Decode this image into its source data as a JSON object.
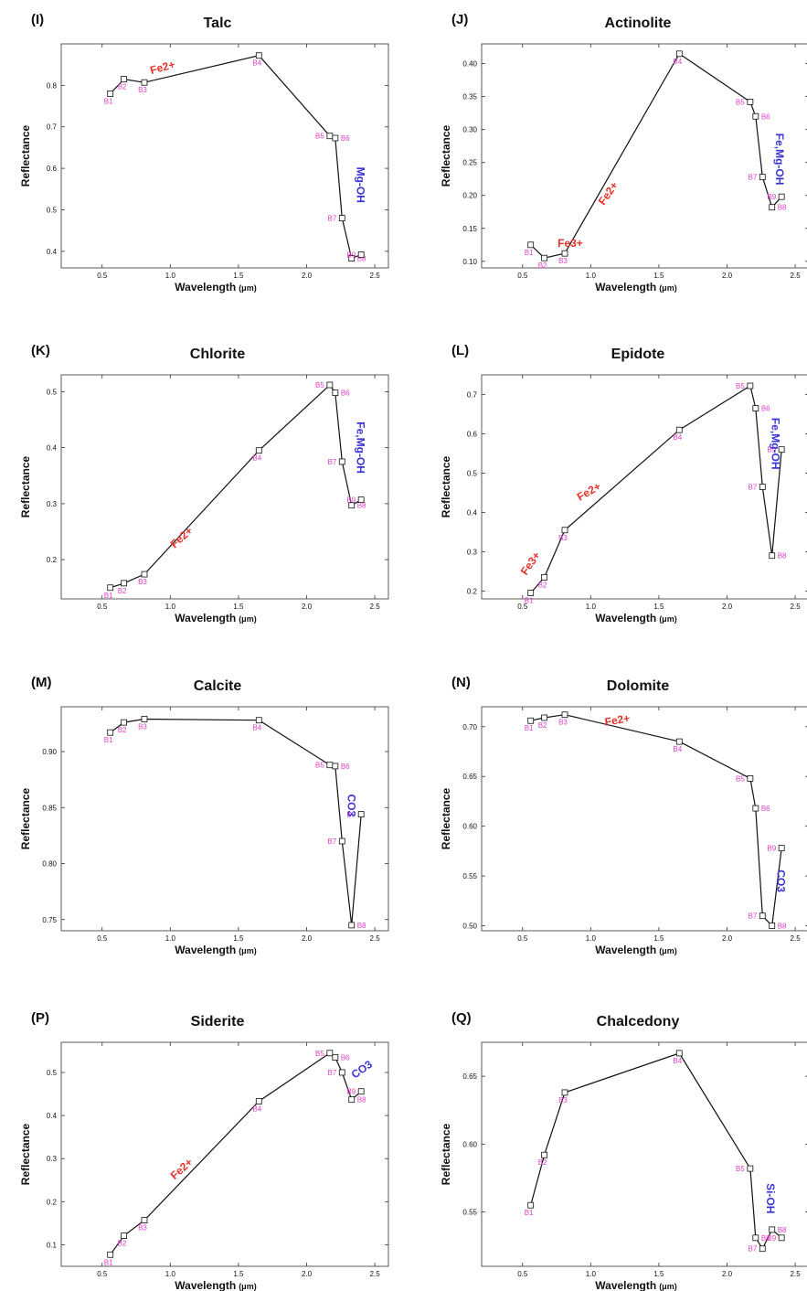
{
  "figure": {
    "xlabel": "Wavelength",
    "xunit": "(μm)",
    "ylabel": "Reflectance",
    "colors": {
      "line": "#111111",
      "band_label": "#e040c8",
      "fe_label": "#e8302a",
      "oh_label": "#3a34d8",
      "box": "#333333"
    }
  },
  "chart_data": [
    {
      "type": "line",
      "panel": "(I)",
      "title": "Talc",
      "xlabel": "Wavelength",
      "ylabel": "Reflectance",
      "xlim": [
        0.2,
        2.6
      ],
      "ylim": [
        0.36,
        0.9
      ],
      "xticks": [
        "0.5",
        "1.0",
        "1.5",
        "2.0",
        "2.5"
      ],
      "yticks": [
        "0.4",
        "0.5",
        "0.6",
        "0.7",
        "0.8"
      ],
      "grid": false,
      "points": [
        {
          "x": 0.56,
          "y": 0.78,
          "label": "B1"
        },
        {
          "x": 0.66,
          "y": 0.815,
          "label": "B2"
        },
        {
          "x": 0.81,
          "y": 0.807,
          "label": "B3"
        },
        {
          "x": 1.65,
          "y": 0.872,
          "label": "B4"
        },
        {
          "x": 2.17,
          "y": 0.678,
          "label": "B5"
        },
        {
          "x": 2.21,
          "y": 0.673,
          "label": "B6"
        },
        {
          "x": 2.26,
          "y": 0.48,
          "label": "B7"
        },
        {
          "x": 2.33,
          "y": 0.383,
          "label": "B8"
        },
        {
          "x": 2.4,
          "y": 0.392,
          "label": "B9"
        }
      ],
      "annotations": [
        {
          "text": "Fe2+",
          "x": 0.95,
          "y": 0.835,
          "rot": -15,
          "kind": "fe"
        },
        {
          "text": "Mg-OH",
          "x": 2.37,
          "y": 0.56,
          "rot": 90,
          "kind": "oh"
        }
      ]
    },
    {
      "type": "line",
      "panel": "(J)",
      "title": "Actinolite",
      "xlabel": "Wavelength",
      "ylabel": "Reflectance",
      "xlim": [
        0.2,
        2.6
      ],
      "ylim": [
        0.09,
        0.43
      ],
      "xticks": [
        "0.5",
        "1.0",
        "1.5",
        "2.0",
        "2.5"
      ],
      "yticks": [
        "0.10",
        "0.15",
        "0.20",
        "0.25",
        "0.30",
        "0.35",
        "0.40"
      ],
      "grid": false,
      "points": [
        {
          "x": 0.56,
          "y": 0.125,
          "label": "B1"
        },
        {
          "x": 0.66,
          "y": 0.105,
          "label": "B2"
        },
        {
          "x": 0.81,
          "y": 0.112,
          "label": "B3"
        },
        {
          "x": 1.65,
          "y": 0.415,
          "label": "B4"
        },
        {
          "x": 2.17,
          "y": 0.342,
          "label": "B5"
        },
        {
          "x": 2.21,
          "y": 0.32,
          "label": "B6"
        },
        {
          "x": 2.26,
          "y": 0.228,
          "label": "B7"
        },
        {
          "x": 2.33,
          "y": 0.182,
          "label": "B8"
        },
        {
          "x": 2.4,
          "y": 0.198,
          "label": "B9"
        }
      ],
      "annotations": [
        {
          "text": "Fe3+",
          "x": 0.85,
          "y": 0.122,
          "rot": 0,
          "kind": "fe"
        },
        {
          "text": "Fe2+",
          "x": 1.15,
          "y": 0.2,
          "rot": -55,
          "kind": "fe"
        },
        {
          "text": "Fe,Mg-OH",
          "x": 2.36,
          "y": 0.255,
          "rot": 90,
          "kind": "oh"
        }
      ]
    },
    {
      "type": "line",
      "panel": "(K)",
      "title": "Chlorite",
      "xlabel": "Wavelength",
      "ylabel": "Reflectance",
      "xlim": [
        0.2,
        2.6
      ],
      "ylim": [
        0.13,
        0.53
      ],
      "xticks": [
        "0.5",
        "1.0",
        "1.5",
        "2.0",
        "2.5"
      ],
      "yticks": [
        "0.2",
        "0.3",
        "0.4",
        "0.5"
      ],
      "grid": false,
      "points": [
        {
          "x": 0.56,
          "y": 0.15,
          "label": "B1"
        },
        {
          "x": 0.66,
          "y": 0.158,
          "label": "B2"
        },
        {
          "x": 0.81,
          "y": 0.174,
          "label": "B3"
        },
        {
          "x": 1.65,
          "y": 0.395,
          "label": "B4"
        },
        {
          "x": 2.17,
          "y": 0.512,
          "label": "B5"
        },
        {
          "x": 2.21,
          "y": 0.498,
          "label": "B6"
        },
        {
          "x": 2.26,
          "y": 0.375,
          "label": "B7"
        },
        {
          "x": 2.33,
          "y": 0.297,
          "label": "B8"
        },
        {
          "x": 2.4,
          "y": 0.307,
          "label": "B9"
        }
      ],
      "annotations": [
        {
          "text": "Fe2+",
          "x": 1.1,
          "y": 0.235,
          "rot": -42,
          "kind": "fe"
        },
        {
          "text": "Fe,Mg-OH",
          "x": 2.37,
          "y": 0.4,
          "rot": 90,
          "kind": "oh"
        }
      ]
    },
    {
      "type": "line",
      "panel": "(L)",
      "title": "Epidote",
      "xlabel": "Wavelength",
      "ylabel": "Reflectance",
      "xlim": [
        0.2,
        2.6
      ],
      "ylim": [
        0.18,
        0.75
      ],
      "xticks": [
        "0.5",
        "1.0",
        "1.5",
        "2.0",
        "2.5"
      ],
      "yticks": [
        "0.2",
        "0.3",
        "0.4",
        "0.5",
        "0.6",
        "0.7"
      ],
      "grid": false,
      "points": [
        {
          "x": 0.56,
          "y": 0.195,
          "label": "B1"
        },
        {
          "x": 0.66,
          "y": 0.235,
          "label": "B2"
        },
        {
          "x": 0.81,
          "y": 0.355,
          "label": "B3"
        },
        {
          "x": 1.65,
          "y": 0.61,
          "label": "B4"
        },
        {
          "x": 2.17,
          "y": 0.722,
          "label": "B5"
        },
        {
          "x": 2.21,
          "y": 0.665,
          "label": "B6"
        },
        {
          "x": 2.26,
          "y": 0.465,
          "label": "B7"
        },
        {
          "x": 2.33,
          "y": 0.29,
          "label": "B8"
        },
        {
          "x": 2.4,
          "y": 0.56,
          "label": "B9"
        }
      ],
      "annotations": [
        {
          "text": "Fe3+",
          "x": 0.58,
          "y": 0.265,
          "rot": -55,
          "kind": "fe"
        },
        {
          "text": "Fe2+",
          "x": 1.0,
          "y": 0.445,
          "rot": -30,
          "kind": "fe"
        },
        {
          "text": "Fe,Mg-OH",
          "x": 2.33,
          "y": 0.575,
          "rot": 90,
          "kind": "oh"
        }
      ]
    },
    {
      "type": "line",
      "panel": "(M)",
      "title": "Calcite",
      "xlabel": "Wavelength",
      "ylabel": "Reflectance",
      "xlim": [
        0.2,
        2.6
      ],
      "ylim": [
        0.74,
        0.94
      ],
      "xticks": [
        "0.5",
        "1.0",
        "1.5",
        "2.0",
        "2.5"
      ],
      "yticks": [
        "0.75",
        "0.80",
        "0.85",
        "0.90"
      ],
      "grid": false,
      "points": [
        {
          "x": 0.56,
          "y": 0.917,
          "label": "B1"
        },
        {
          "x": 0.66,
          "y": 0.926,
          "label": "B2"
        },
        {
          "x": 0.81,
          "y": 0.929,
          "label": "B3"
        },
        {
          "x": 1.65,
          "y": 0.928,
          "label": "B4"
        },
        {
          "x": 2.17,
          "y": 0.888,
          "label": "B5"
        },
        {
          "x": 2.21,
          "y": 0.887,
          "label": "B6"
        },
        {
          "x": 2.26,
          "y": 0.82,
          "label": "B7"
        },
        {
          "x": 2.33,
          "y": 0.745,
          "label": "B8"
        },
        {
          "x": 2.4,
          "y": 0.844,
          "label": "B9"
        }
      ],
      "annotations": [
        {
          "text": "CO3",
          "x": 2.3,
          "y": 0.852,
          "rot": 90,
          "kind": "oh"
        }
      ]
    },
    {
      "type": "line",
      "panel": "(N)",
      "title": "Dolomite",
      "xlabel": "Wavelength",
      "ylabel": "Reflectance",
      "xlim": [
        0.2,
        2.6
      ],
      "ylim": [
        0.495,
        0.72
      ],
      "xticks": [
        "0.5",
        "1.0",
        "1.5",
        "2.0",
        "2.5"
      ],
      "yticks": [
        "0.50",
        "0.55",
        "0.60",
        "0.65",
        "0.70"
      ],
      "grid": false,
      "points": [
        {
          "x": 0.56,
          "y": 0.706,
          "label": "B1"
        },
        {
          "x": 0.66,
          "y": 0.709,
          "label": "B2"
        },
        {
          "x": 0.81,
          "y": 0.712,
          "label": "B3"
        },
        {
          "x": 1.65,
          "y": 0.685,
          "label": "B4"
        },
        {
          "x": 2.17,
          "y": 0.648,
          "label": "B5"
        },
        {
          "x": 2.21,
          "y": 0.618,
          "label": "B6"
        },
        {
          "x": 2.26,
          "y": 0.51,
          "label": "B7"
        },
        {
          "x": 2.33,
          "y": 0.5,
          "label": "B8"
        },
        {
          "x": 2.4,
          "y": 0.578,
          "label": "B9"
        }
      ],
      "annotations": [
        {
          "text": "Fe2+",
          "x": 1.2,
          "y": 0.703,
          "rot": -10,
          "kind": "fe"
        },
        {
          "text": "CO3",
          "x": 2.37,
          "y": 0.545,
          "rot": 90,
          "kind": "oh"
        }
      ]
    },
    {
      "type": "line",
      "panel": "(P)",
      "title": "Siderite",
      "xlabel": "Wavelength",
      "ylabel": "Reflectance",
      "xlim": [
        0.2,
        2.6
      ],
      "ylim": [
        0.05,
        0.57
      ],
      "xticks": [
        "0.5",
        "1.0",
        "1.5",
        "2.0",
        "2.5"
      ],
      "yticks": [
        "0.1",
        "0.2",
        "0.3",
        "0.4",
        "0.5"
      ],
      "grid": false,
      "points": [
        {
          "x": 0.56,
          "y": 0.077,
          "label": "B1"
        },
        {
          "x": 0.66,
          "y": 0.121,
          "label": "B2"
        },
        {
          "x": 0.81,
          "y": 0.157,
          "label": "B3"
        },
        {
          "x": 1.65,
          "y": 0.433,
          "label": "B4"
        },
        {
          "x": 2.17,
          "y": 0.545,
          "label": "B5"
        },
        {
          "x": 2.21,
          "y": 0.535,
          "label": "B6"
        },
        {
          "x": 2.26,
          "y": 0.5,
          "label": "B7"
        },
        {
          "x": 2.33,
          "y": 0.437,
          "label": "B8"
        },
        {
          "x": 2.4,
          "y": 0.456,
          "label": "B9"
        }
      ],
      "annotations": [
        {
          "text": "Fe2+",
          "x": 1.1,
          "y": 0.27,
          "rot": -42,
          "kind": "fe"
        },
        {
          "text": "CO3",
          "x": 2.42,
          "y": 0.5,
          "rot": -35,
          "kind": "oh"
        }
      ]
    },
    {
      "type": "line",
      "panel": "(Q)",
      "title": "Chalcedony",
      "xlabel": "Wavelength",
      "ylabel": "Reflectance",
      "xlim": [
        0.2,
        2.6
      ],
      "ylim": [
        0.51,
        0.675
      ],
      "xticks": [
        "0.5",
        "1.0",
        "1.5",
        "2.0",
        "2.5"
      ],
      "yticks": [
        "0.55",
        "0.60",
        "0.65"
      ],
      "grid": false,
      "points": [
        {
          "x": 0.56,
          "y": 0.555,
          "label": "B1"
        },
        {
          "x": 0.66,
          "y": 0.592,
          "label": "B2"
        },
        {
          "x": 0.81,
          "y": 0.638,
          "label": "B3"
        },
        {
          "x": 1.65,
          "y": 0.667,
          "label": "B4"
        },
        {
          "x": 2.17,
          "y": 0.582,
          "label": "B5"
        },
        {
          "x": 2.21,
          "y": 0.531,
          "label": "B6"
        },
        {
          "x": 2.26,
          "y": 0.523,
          "label": "B7"
        },
        {
          "x": 2.33,
          "y": 0.537,
          "label": "B8"
        },
        {
          "x": 2.4,
          "y": 0.531,
          "label": "B9"
        }
      ],
      "annotations": [
        {
          "text": "Si-OH",
          "x": 2.29,
          "y": 0.56,
          "rot": 90,
          "kind": "oh"
        }
      ]
    }
  ]
}
